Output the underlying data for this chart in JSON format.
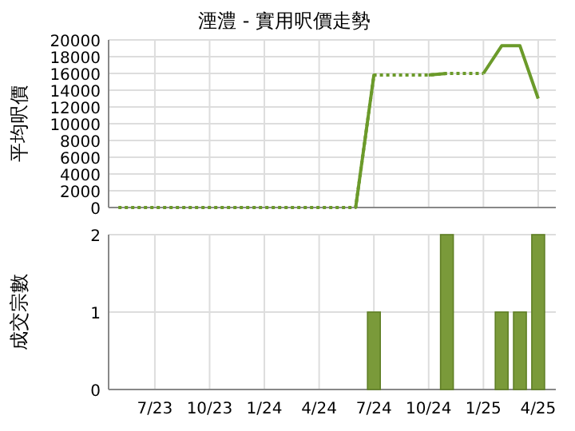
{
  "chart_data": [
    {
      "type": "line",
      "title": "湮澧 - 實用呎價走勢",
      "ylabel": "平均呎價",
      "xlim": [
        "2023-04-15",
        "2025-04-30"
      ],
      "ylim": [
        0,
        20000
      ],
      "yticks": [
        0,
        2000,
        4000,
        6000,
        8000,
        10000,
        12000,
        14000,
        16000,
        18000,
        20000
      ],
      "xticks": [
        {
          "value": "2023-07",
          "label": null
        },
        {
          "value": "2023-10",
          "label": null
        },
        {
          "value": "2024-01",
          "label": null
        },
        {
          "value": "2024-04",
          "label": null
        },
        {
          "value": "2024-07",
          "label": null
        },
        {
          "value": "2024-10",
          "label": null
        },
        {
          "value": "2025-01",
          "label": null
        },
        {
          "value": "2025-04",
          "label": null
        }
      ],
      "grid": true,
      "tick_labels": "y",
      "series": [
        {
          "color": "#6b9a2a",
          "line_style": "dotted",
          "x": [
            "2023-05",
            "2023-06",
            "2023-07",
            "2023-08",
            "2023-09",
            "2023-10",
            "2023-11",
            "2023-12",
            "2024-01",
            "2024-02",
            "2024-03",
            "2024-04",
            "2024-05",
            "2024-06",
            "2024-07",
            "2024-08",
            "2024-09",
            "2024-10",
            "2024-11",
            "2024-12",
            "2025-01"
          ],
          "values": [
            0,
            0,
            0,
            0,
            0,
            0,
            0,
            0,
            0,
            0,
            0,
            0,
            0,
            0,
            15800,
            15800,
            15800,
            15800,
            16000,
            16000,
            16000
          ]
        },
        {
          "color": "#6b9a2a",
          "line_style": "solid",
          "x": [
            "2024-06",
            "2024-07"
          ],
          "values": [
            0,
            15800
          ]
        },
        {
          "color": "#6b9a2a",
          "line_style": "solid",
          "x": [
            "2024-10",
            "2024-11"
          ],
          "values": [
            15800,
            16000
          ]
        },
        {
          "color": "#6b9a2a",
          "line_style": "solid",
          "x": [
            "2025-01",
            "2025-02",
            "2025-03",
            "2025-04"
          ],
          "values": [
            16000,
            19300,
            19300,
            13000
          ]
        }
      ]
    },
    {
      "type": "bar",
      "ylabel": "成交宗數",
      "xlim": [
        "2023-04-15",
        "2025-04-30"
      ],
      "ylim": [
        0,
        2
      ],
      "yticks": [
        0,
        1,
        2
      ],
      "xticks": [
        {
          "value": "2023-07",
          "label": "7/23"
        },
        {
          "value": "2023-10",
          "label": "10/23"
        },
        {
          "value": "2024-01",
          "label": "1/24"
        },
        {
          "value": "2024-04",
          "label": "4/24"
        },
        {
          "value": "2024-07",
          "label": "7/24"
        },
        {
          "value": "2024-10",
          "label": "10/24"
        },
        {
          "value": "2025-01",
          "label": "1/25"
        },
        {
          "value": "2025-04",
          "label": "4/25"
        }
      ],
      "grid": true,
      "series": [
        {
          "color": "#7a9a3a",
          "x": [
            "2024-07",
            "2024-11",
            "2025-02",
            "2025-03",
            "2025-04"
          ],
          "values": [
            1,
            2,
            1,
            1,
            2
          ]
        }
      ]
    }
  ]
}
